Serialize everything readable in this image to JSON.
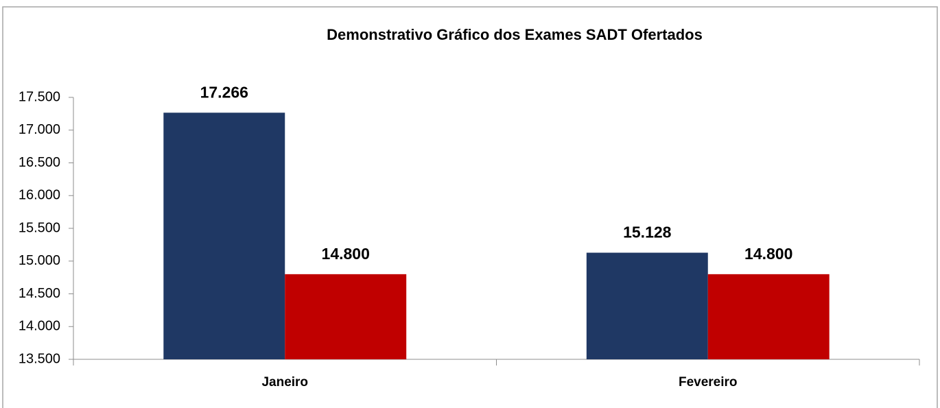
{
  "chart_data": {
    "type": "bar",
    "title": "Demonstrativo Gráfico dos Exames SADT Ofertados",
    "categories": [
      "Janeiro",
      "Fevereiro"
    ],
    "series": [
      {
        "color": "#1f3864",
        "values": [
          17266,
          15128
        ],
        "value_labels": [
          "17.266",
          "15.128"
        ]
      },
      {
        "color": "#c00000",
        "values": [
          14800,
          14800
        ],
        "value_labels": [
          "14.800",
          "14.800"
        ]
      }
    ],
    "ylim": [
      13500,
      17500
    ],
    "yticks": [
      {
        "value": 13500,
        "label": "13.500"
      },
      {
        "value": 14000,
        "label": "14.000"
      },
      {
        "value": 14500,
        "label": "14.500"
      },
      {
        "value": 15000,
        "label": "15.000"
      },
      {
        "value": 15500,
        "label": "15.500"
      },
      {
        "value": 16000,
        "label": "16.000"
      },
      {
        "value": 16500,
        "label": "16.500"
      },
      {
        "value": 17000,
        "label": "17.000"
      },
      {
        "value": 17500,
        "label": "17.500"
      }
    ],
    "grid": false
  }
}
